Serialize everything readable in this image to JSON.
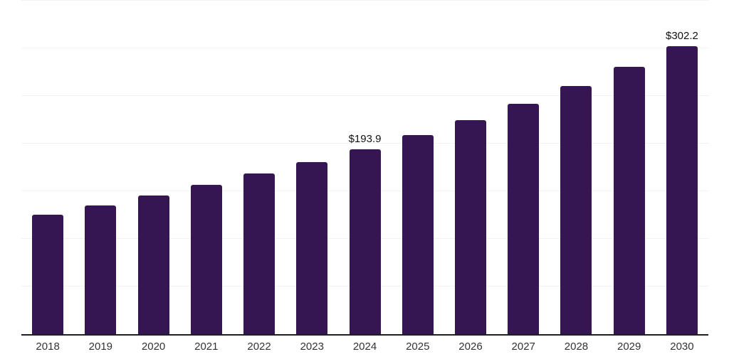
{
  "chart_data": {
    "type": "bar",
    "title": "",
    "xlabel": "",
    "ylabel": "",
    "categories": [
      "2018",
      "2019",
      "2020",
      "2021",
      "2022",
      "2023",
      "2024",
      "2025",
      "2026",
      "2027",
      "2028",
      "2029",
      "2030"
    ],
    "values": [
      125.5,
      135.0,
      145.9,
      156.6,
      168.5,
      180.7,
      193.9,
      208.8,
      224.8,
      242.1,
      260.7,
      280.7,
      302.2
    ],
    "point_labels": [
      null,
      null,
      null,
      null,
      null,
      null,
      "$193.9",
      null,
      null,
      null,
      null,
      null,
      "$302.2"
    ],
    "ylim": [
      0,
      350
    ],
    "gridline_step": 50,
    "grid": "horizontal-only",
    "legend_position": "none",
    "y_tick_labels_shown": false,
    "style": {
      "bar_color": "#351653",
      "gridline_color": "#f2f2f2",
      "axis_line_color": "#1f1f1f",
      "value_label_color": "#111111",
      "tick_label_color": "#333333",
      "background_color": "#ffffff"
    }
  }
}
